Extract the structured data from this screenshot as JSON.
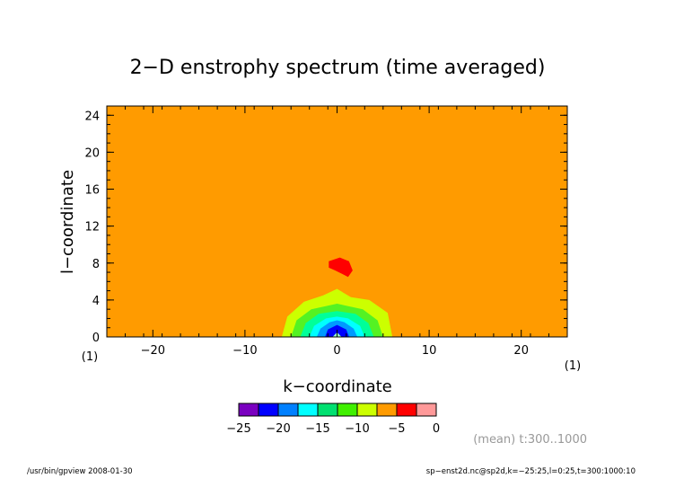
{
  "chart_data": {
    "type": "heatmap",
    "title": "2−D enstrophy spectrum (time averaged)",
    "xlabel": "k−coordinate",
    "ylabel": "l−coordinate",
    "xlim": [
      -25,
      25
    ],
    "ylim": [
      0,
      25
    ],
    "x_ticks": [
      -20,
      -10,
      0,
      10,
      20
    ],
    "x_tick_labels": [
      "−20",
      "−10",
      "0",
      "10",
      "20"
    ],
    "y_ticks": [
      0,
      4,
      8,
      12,
      16,
      20,
      24
    ],
    "y_tick_labels": [
      "0",
      "4",
      "8",
      "12",
      "16",
      "20",
      "24"
    ],
    "x_unit": "(1)",
    "y_unit": "(1)",
    "background_level_color": "#ff9b00",
    "contours": [
      {
        "level": -10,
        "color": "#ccff00",
        "points": [
          [
            -6,
            0
          ],
          [
            -5.4,
            2.2
          ],
          [
            -3.6,
            3.8
          ],
          [
            -1.5,
            4.5
          ],
          [
            0,
            5.2
          ],
          [
            1.5,
            4.3
          ],
          [
            3.5,
            4.0
          ],
          [
            5.5,
            2.6
          ],
          [
            6,
            0
          ]
        ]
      },
      {
        "level": -12.5,
        "color": "#54f223",
        "points": [
          [
            -5,
            0
          ],
          [
            -4.4,
            1.8
          ],
          [
            -2.8,
            3.0
          ],
          [
            0,
            3.6
          ],
          [
            2.8,
            3.0
          ],
          [
            4.4,
            1.8
          ],
          [
            5,
            0
          ]
        ]
      },
      {
        "level": -15,
        "color": "#00ff99",
        "points": [
          [
            -4,
            0
          ],
          [
            -3.4,
            1.5
          ],
          [
            -2,
            2.5
          ],
          [
            0,
            2.8
          ],
          [
            2,
            2.5
          ],
          [
            3.4,
            1.5
          ],
          [
            4,
            0
          ]
        ]
      },
      {
        "level": -17.5,
        "color": "#00ffff",
        "points": [
          [
            -3,
            0
          ],
          [
            -2.5,
            1.2
          ],
          [
            -1.2,
            2.0
          ],
          [
            0,
            2.2
          ],
          [
            1.2,
            2.0
          ],
          [
            2.5,
            1.2
          ],
          [
            3,
            0
          ]
        ]
      },
      {
        "level": -20,
        "color": "#0099ff",
        "points": [
          [
            -2.2,
            0
          ],
          [
            -1.8,
            0.9
          ],
          [
            -0.8,
            1.6
          ],
          [
            0,
            1.8
          ],
          [
            0.8,
            1.6
          ],
          [
            1.8,
            0.9
          ],
          [
            2.2,
            0
          ]
        ]
      },
      {
        "level": -22.5,
        "color": "#0000ff",
        "points": [
          [
            -1.3,
            0
          ],
          [
            -1,
            0.8
          ],
          [
            0,
            1.3
          ],
          [
            1,
            0.8
          ],
          [
            1.3,
            0
          ]
        ]
      },
      {
        "level": -25,
        "color": "#99ffcc",
        "points": [
          [
            -0.5,
            0
          ],
          [
            0,
            0.5
          ],
          [
            0.5,
            0
          ]
        ]
      },
      {
        "level": -5,
        "color": "#ff0000",
        "points": [
          [
            -0.9,
            8.2
          ],
          [
            0.3,
            8.6
          ],
          [
            1.3,
            8.2
          ],
          [
            1.7,
            7.2
          ],
          [
            1.2,
            6.5
          ],
          [
            -0.2,
            7.2
          ],
          [
            -0.9,
            7.5
          ]
        ]
      }
    ],
    "colorbar": {
      "colors": [
        "#7a00c0",
        "#0000ff",
        "#0080ff",
        "#00ffff",
        "#00e070",
        "#40f000",
        "#ccff00",
        "#ff9b00",
        "#ff0000",
        "#ff9999"
      ],
      "ticks": [
        -25,
        -20,
        -15,
        -10,
        -5,
        0
      ],
      "tick_labels": [
        "−25",
        "−20",
        "−15",
        "−10",
        "−5",
        "0"
      ],
      "range": [
        -25,
        0
      ]
    },
    "annotation": "(mean) t:300..1000"
  },
  "footer": {
    "left": "/usr/bin/gpview   2008-01-30",
    "right": "sp−enst2d.nc@sp2d,k=−25:25,l=0:25,t=300:1000:10"
  }
}
